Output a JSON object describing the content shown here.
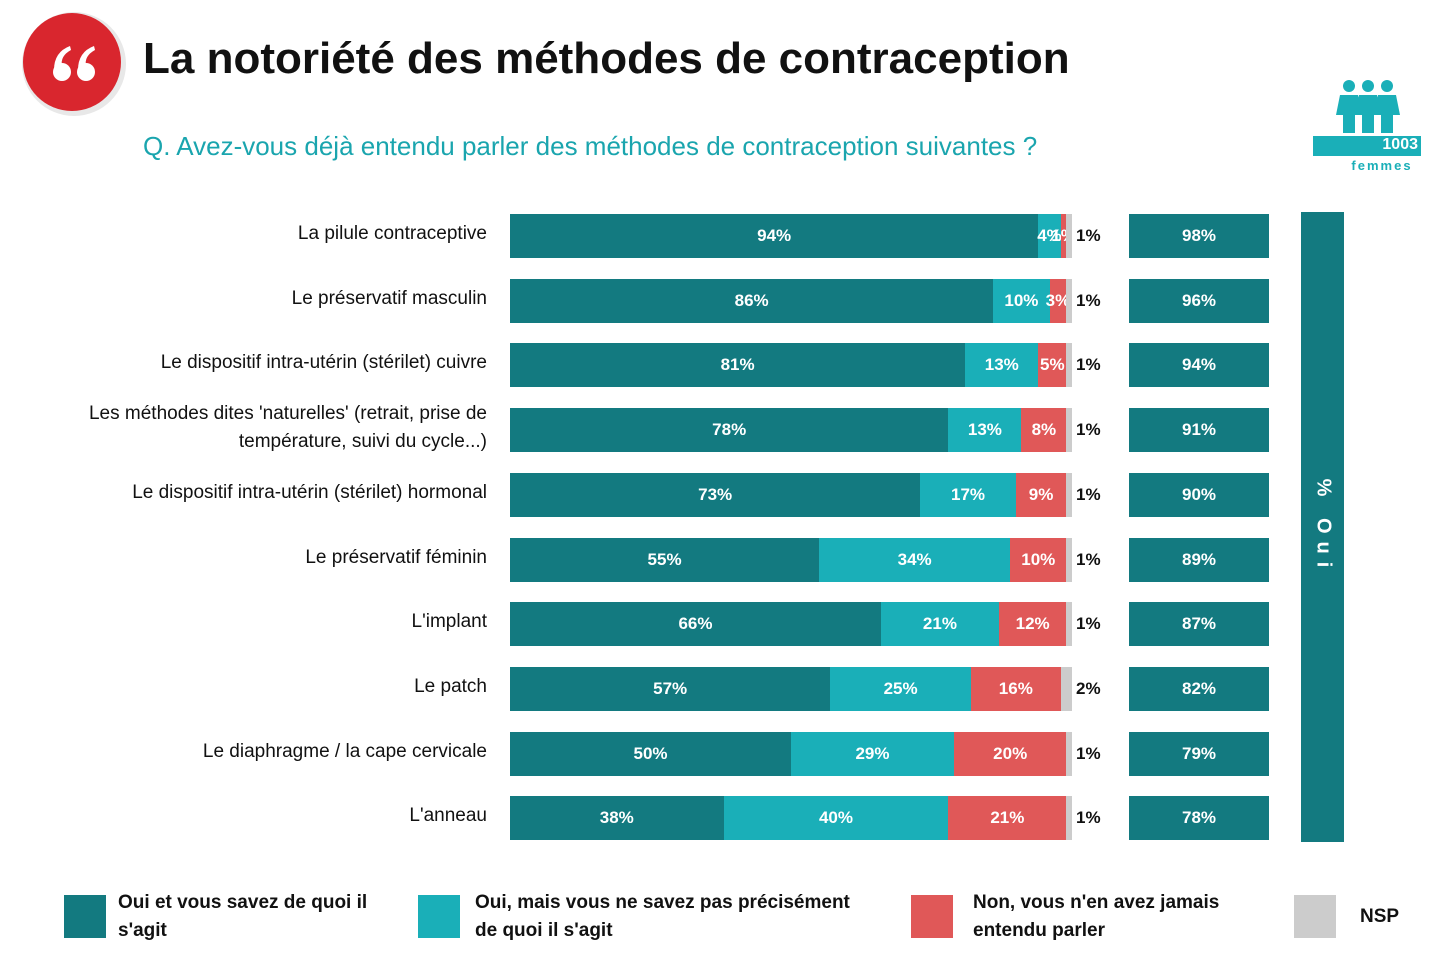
{
  "chart_data": {
    "type": "stacked-bar-horizontal",
    "title": "La notoriété des méthodes de contraception",
    "subtitle": "Q. Avez-vous déjà entendu parler des méthodes de contraception suivantes ?",
    "sample": {
      "count": 1003,
      "label": "femmes"
    },
    "categories": [
      "La pilule contraceptive",
      "Le préservatif masculin",
      "Le dispositif intra-utérin (stérilet) cuivre",
      "Les méthodes dites 'naturelles' (retrait, prise de température, suivi du cycle...)",
      "Le dispositif intra-utérin (stérilet) hormonal",
      "Le préservatif féminin",
      "L'implant",
      "Le patch",
      "Le diaphragme / la cape cervicale",
      "L'anneau"
    ],
    "series": [
      {
        "name": "Oui et vous savez de quoi il s'agit",
        "color": "#137a80",
        "values": [
          94,
          86,
          81,
          78,
          73,
          55,
          66,
          57,
          50,
          38
        ],
        "value_labels": [
          "94%",
          "86%",
          "81%",
          "78%",
          "73%",
          "55%",
          "66%",
          "57%",
          "50%",
          "38%"
        ]
      },
      {
        "name": "Oui, mais vous ne savez pas précisément de quoi il s'agit",
        "color": "#1aafb8",
        "values": [
          4,
          10,
          13,
          13,
          17,
          34,
          21,
          25,
          29,
          40
        ],
        "value_labels": [
          "4%",
          "10%",
          "13%",
          "13%",
          "17%",
          "34%",
          "21%",
          "25%",
          "29%",
          "40%"
        ]
      },
      {
        "name": "Non, vous n'en avez jamais entendu parler",
        "color": "#e05858",
        "values": [
          1,
          3,
          5,
          8,
          9,
          10,
          12,
          16,
          20,
          21
        ],
        "value_labels": [
          "1%",
          "3%",
          "5%",
          "8%",
          "9%",
          "10%",
          "12%",
          "16%",
          "20%",
          "21%"
        ]
      },
      {
        "name": "NSP",
        "color": "#cccccc",
        "values": [
          1,
          1,
          1,
          1,
          1,
          1,
          1,
          2,
          1,
          1
        ],
        "value_labels": [
          "1%",
          "1%",
          "1%",
          "1%",
          "1%",
          "1%",
          "1%",
          "2%",
          "1%",
          "1%"
        ]
      }
    ],
    "totals": {
      "name": "% Oui",
      "color": "#137a80",
      "values": [
        98,
        96,
        94,
        91,
        90,
        89,
        87,
        82,
        79,
        78
      ],
      "value_labels": [
        "98%",
        "96%",
        "94%",
        "91%",
        "90%",
        "89%",
        "87%",
        "82%",
        "79%",
        "78%"
      ]
    }
  }
}
